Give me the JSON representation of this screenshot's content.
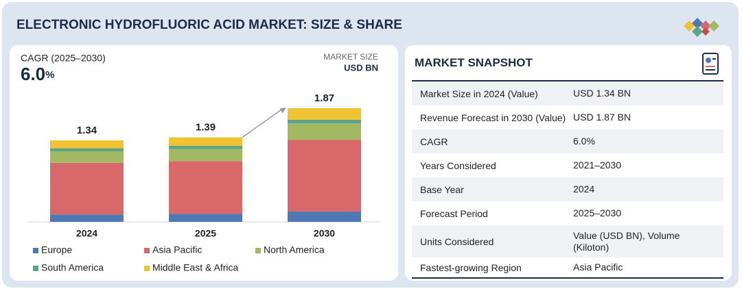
{
  "header": {
    "title": "ELECTRONIC HYDROFLUORIC ACID MARKET: SIZE & SHARE"
  },
  "cagr": {
    "label": "CAGR (2025–2030)",
    "value": "6.0",
    "unit": "%"
  },
  "market_size": {
    "label": "MARKET SIZE",
    "unit": "USD BN"
  },
  "chart_data": {
    "type": "stacked_bar",
    "categories": [
      "2024",
      "2025",
      "2030"
    ],
    "totals": [
      1.34,
      1.39,
      1.87
    ],
    "series": [
      {
        "name": "Europe",
        "color": "#4e79b5",
        "values": [
          0.12,
          0.13,
          0.17
        ]
      },
      {
        "name": "Asia Pacific",
        "color": "#d9686a",
        "values": [
          0.85,
          0.87,
          1.18
        ]
      },
      {
        "name": "North America",
        "color": "#a3b863",
        "values": [
          0.19,
          0.2,
          0.27
        ]
      },
      {
        "name": "South America",
        "color": "#5aa58a",
        "values": [
          0.05,
          0.05,
          0.06
        ]
      },
      {
        "name": "Middle East & Africa",
        "color": "#f1c232",
        "values": [
          0.13,
          0.14,
          0.19
        ]
      }
    ]
  },
  "snapshot": {
    "title": "MARKET SNAPSHOT",
    "rows": [
      [
        "Market Size in 2024 (Value)",
        "USD 1.34 BN"
      ],
      [
        "Revenue Forecast in 2030 (Value)",
        "USD 1.87 BN"
      ],
      [
        "CAGR",
        "6.0%"
      ],
      [
        "Years Considered",
        "2021–2030"
      ],
      [
        "Base Year",
        "2024"
      ],
      [
        "Forecast Period",
        "2025–2030"
      ],
      [
        "Units Considered",
        "Value (USD BN), Volume (Kiloton)"
      ],
      [
        "Fastest-growing Region",
        "Asia Pacific"
      ]
    ]
  }
}
